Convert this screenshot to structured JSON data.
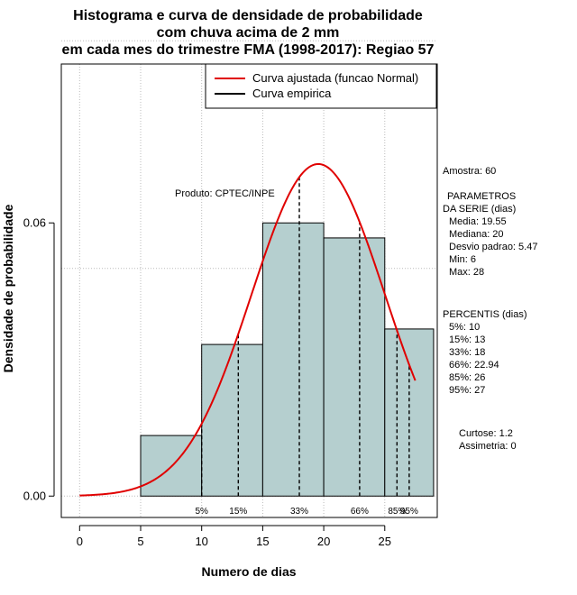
{
  "chart_data": {
    "type": "bar",
    "title_lines": [
      "Histograma e curva de densidade de probabilidade",
      "com chuva acima de 2 mm",
      "em cada mes do trimestre FMA (1998-2017): Regiao 57"
    ],
    "xlabel": "Numero de dias",
    "ylabel": "Densidade de probabilidade",
    "xlim": [
      -1.5,
      29.3
    ],
    "ylim": [
      -0.0047,
      0.0949
    ],
    "x_ticks": [
      0,
      5,
      10,
      15,
      20,
      25
    ],
    "y_ticks": [
      0.0,
      0.06
    ],
    "y_tick_labels": [
      "0.00",
      "0.06"
    ],
    "x_grid": [
      0,
      5,
      10,
      15,
      20,
      25
    ],
    "y_grid": [
      0.0,
      0.05,
      0.1
    ],
    "bins": [
      {
        "x0": 5,
        "x1": 10,
        "density": 0.0133
      },
      {
        "x0": 10,
        "x1": 15,
        "density": 0.0333
      },
      {
        "x0": 15,
        "x1": 20,
        "density": 0.06
      },
      {
        "x0": 20,
        "x1": 25,
        "density": 0.0567
      },
      {
        "x0": 25,
        "x1": 29,
        "density": 0.0367
      }
    ],
    "bar_fill": "#b5cfcf",
    "curve_color": "#e00000",
    "normal_fit": {
      "mean": 19.55,
      "sd": 5.47,
      "x_from": 0,
      "x_to": 27.5
    },
    "percentile_lines": [
      {
        "label": "5%",
        "x": 10
      },
      {
        "label": "15%",
        "x": 13
      },
      {
        "label": "33%",
        "x": 18
      },
      {
        "label": "66%",
        "x": 22.94
      },
      {
        "label": "85%",
        "x": 26
      },
      {
        "label": "95%",
        "x": 27
      }
    ],
    "legend": [
      {
        "label": "Curva ajustada (funcao Normal)",
        "color": "#e00000"
      },
      {
        "label": "Curva empirica",
        "color": "#000000"
      }
    ],
    "legend_position": "top-right",
    "product_label": "Produto: CPTEC/INPE",
    "stats": {
      "amostra": "Amostra: 60",
      "params_title": "PARAMETROS",
      "params_subtitle": "DA SERIE (dias)",
      "media": "Media: 19.55",
      "mediana": "Mediana: 20",
      "desvio": "Desvio padrao: 5.47",
      "min": "Min: 6",
      "max": "Max: 28",
      "percentis_title": "PERCENTIS (dias)",
      "p5": "5%: 10",
      "p15": "15%: 13",
      "p33": "33%: 18",
      "p66": "66%: 22.94",
      "p85": "85%: 26",
      "p95": "95%: 27",
      "curtose": "Curtose: 1.2",
      "assimetria": "Assimetria: 0"
    }
  }
}
